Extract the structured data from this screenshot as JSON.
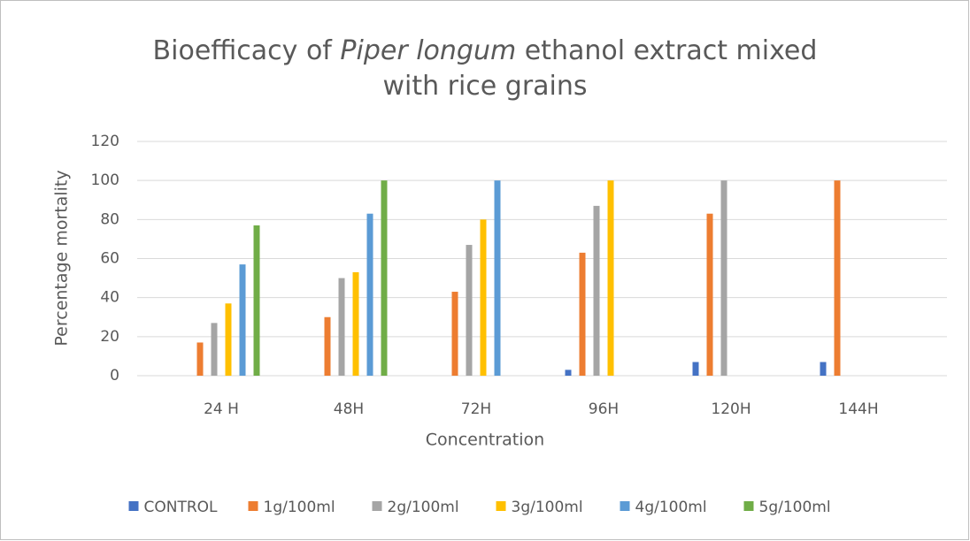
{
  "chart_data": {
    "type": "bar",
    "title": [
      "Bioefficacy of ",
      "Piper longum",
      " ethanol extract mixed",
      "with rice grains"
    ],
    "x_label": "Concentration",
    "y_label": "Percentage mortality",
    "categories": [
      "24 H",
      "48H",
      "72H",
      "96H",
      "120H",
      "144H"
    ],
    "series": [
      {
        "name": "CONTROL",
        "color": "#4472c4",
        "values": [
          0,
          0,
          0,
          3,
          7,
          7
        ]
      },
      {
        "name": "1g/100ml",
        "color": "#ed7d31",
        "values": [
          17,
          30,
          43,
          63,
          83,
          100
        ]
      },
      {
        "name": "2g/100ml",
        "color": "#a5a5a5",
        "values": [
          27,
          50,
          67,
          87,
          100,
          0
        ]
      },
      {
        "name": "3g/100ml",
        "color": "#ffc000",
        "values": [
          37,
          53,
          80,
          100,
          0,
          0
        ]
      },
      {
        "name": "4g/100ml",
        "color": "#5b9bd5",
        "values": [
          57,
          83,
          100,
          0,
          0,
          0
        ]
      },
      {
        "name": "5g/100ml",
        "color": "#70ad47",
        "values": [
          77,
          100,
          0,
          0,
          0,
          0
        ]
      }
    ],
    "ylim": [
      0,
      120
    ],
    "yticks": [
      0,
      20,
      40,
      60,
      80,
      100,
      120
    ],
    "grid": true,
    "legend": "bottom"
  }
}
